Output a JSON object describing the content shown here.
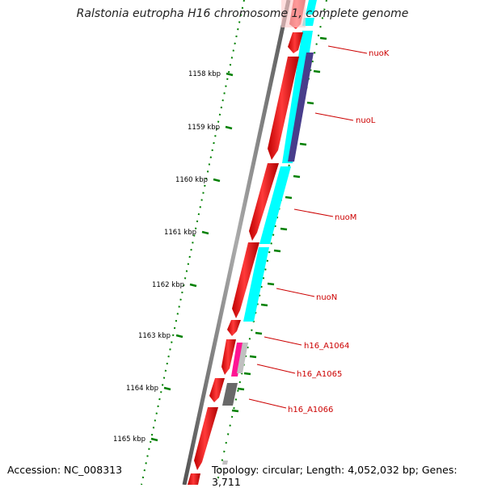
{
  "title": "Ralstonia eutropha H16 chromosome 1, complete genome",
  "footer": {
    "accession": "Accession: NC_008313",
    "topology": "Topology: circular; Length: 4,052,032 bp; Genes: 3,711"
  },
  "scale_ticks": [
    {
      "kbp": 1158,
      "label": "1158 kbp"
    },
    {
      "kbp": 1159,
      "label": "1159 kbp"
    },
    {
      "kbp": 1160,
      "label": "1160 kbp"
    },
    {
      "kbp": 1161,
      "label": "1161 kbp"
    },
    {
      "kbp": 1162,
      "label": "1162 kbp"
    },
    {
      "kbp": 1163,
      "label": "1163 kbp"
    },
    {
      "kbp": 1164,
      "label": "1164 kbp"
    },
    {
      "kbp": 1165,
      "label": "1165 kbp"
    }
  ],
  "genes": [
    {
      "label": "nuoK"
    },
    {
      "label": "nuoL"
    },
    {
      "label": "nuoM"
    },
    {
      "label": "nuoN"
    },
    {
      "label": "h16_A1064"
    },
    {
      "label": "h16_A1065"
    },
    {
      "label": "h16_A1066"
    }
  ],
  "colors": {
    "cds": "#ff0000",
    "cog_cyan": "#00ffff",
    "cog_purple": "#483d8b",
    "cog_magenta": "#ff1493",
    "cog_grey": "#696969",
    "backbone": "#808080",
    "ticks": "#008000",
    "label": "#cc0000"
  }
}
